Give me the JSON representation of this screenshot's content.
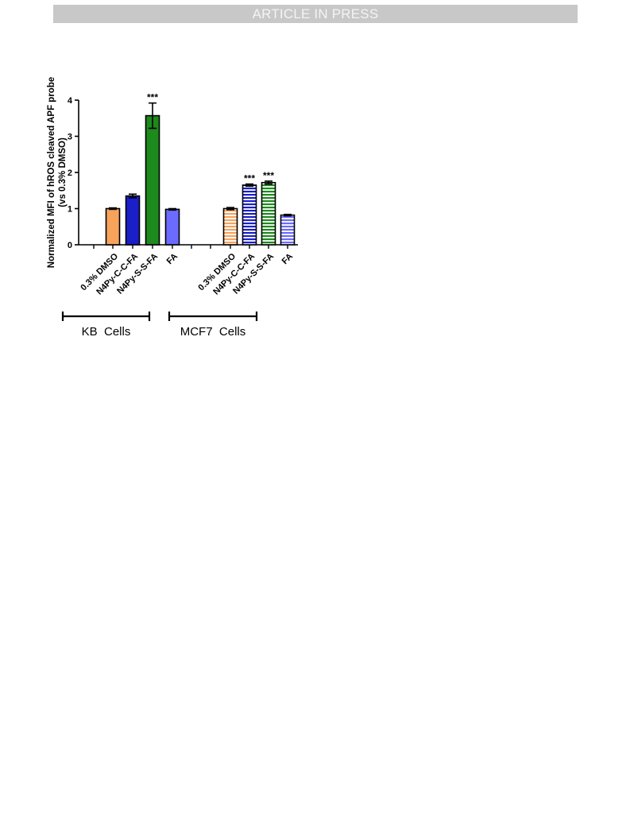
{
  "header": {
    "banner": "ARTICLE IN PRESS"
  },
  "colors": {
    "orange": "#f7a35c",
    "dark_blue": "#1a1fc8",
    "green": "#1d8a1d",
    "light_blue": "#6b6bff",
    "axis": "#000000"
  },
  "chart_data": {
    "type": "bar",
    "ylabel": [
      "Normalized MFI of hROS cleaved APF probe",
      "(vs 0.3% DMSO)"
    ],
    "ylim": [
      0,
      4
    ],
    "yticks": [
      "0",
      "1",
      "2",
      "3",
      "4"
    ],
    "groups": [
      {
        "label": "KB  Cells",
        "bars": [
          {
            "category": "0.3% DMSO",
            "value": 1.0,
            "error": 0.02,
            "color": "#f7a35c",
            "pattern": "solid",
            "sig": ""
          },
          {
            "category": "N4Py-C-C-FA",
            "value": 1.35,
            "error": 0.05,
            "color": "#1a1fc8",
            "pattern": "solid",
            "sig": ""
          },
          {
            "category": "N4Py-S-S-FA",
            "value": 3.57,
            "error": 0.35,
            "color": "#1d8a1d",
            "pattern": "solid",
            "sig": "***"
          },
          {
            "category": "FA",
            "value": 0.98,
            "error": 0.02,
            "color": "#6b6bff",
            "pattern": "solid",
            "sig": ""
          }
        ]
      },
      {
        "label": "MCF7  Cells",
        "bars": [
          {
            "category": "0.3% DMSO",
            "value": 1.0,
            "error": 0.03,
            "color": "#f7a35c",
            "pattern": "striped",
            "sig": ""
          },
          {
            "category": "N4Py-C-C-FA",
            "value": 1.65,
            "error": 0.03,
            "color": "#1a1fc8",
            "pattern": "striped",
            "sig": "***"
          },
          {
            "category": "N4Py-S-S-FA",
            "value": 1.72,
            "error": 0.04,
            "color": "#1d8a1d",
            "pattern": "striped",
            "sig": "***"
          },
          {
            "category": "FA",
            "value": 0.82,
            "error": 0.02,
            "color": "#6b6bff",
            "pattern": "striped",
            "sig": ""
          }
        ]
      }
    ]
  }
}
